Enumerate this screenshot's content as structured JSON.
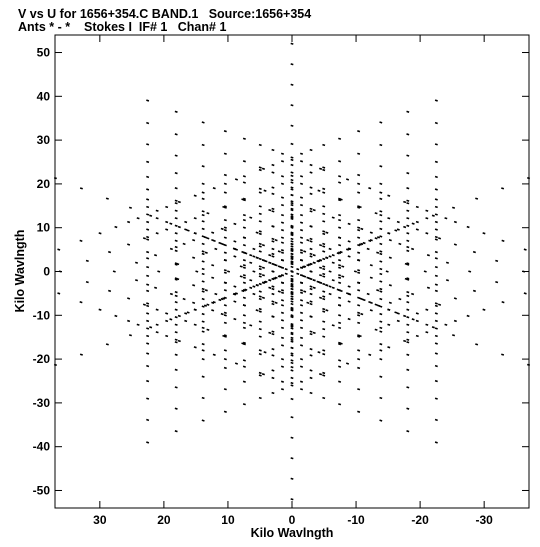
{
  "header": {
    "line1": "V vs U for 1656+354.C BAND.1   Source:1656+354",
    "line2": "Ants * - *    Stokes I  IF# 1   Chan# 1"
  },
  "chart_data": {
    "type": "scatter",
    "xlabel": "Kilo Wavlngth",
    "ylabel": "Kilo Wavlngth",
    "xlim": [
      37,
      -37
    ],
    "ylim": [
      -54,
      54
    ],
    "x_ticks": [
      30,
      20,
      10,
      0,
      -10,
      -20,
      -30
    ],
    "y_ticks": [
      50,
      40,
      30,
      20,
      10,
      0,
      -10,
      -20,
      -30,
      -40,
      -50
    ],
    "x_tick_labels": [
      "30",
      "20",
      "10",
      "0",
      "-10",
      "-20",
      "-30"
    ],
    "y_tick_labels": [
      "50",
      "40",
      "30",
      "20",
      "10",
      "0",
      "-10",
      "-20",
      "-30",
      "-40",
      "-50"
    ],
    "grid": false,
    "arm_angles_deg": [
      90,
      30,
      -30,
      -90,
      -150,
      150
    ],
    "arm_length": 52,
    "arm_sample_fractions": [
      0.02,
      0.04,
      0.06,
      0.09,
      0.12,
      0.16,
      0.2,
      0.25,
      0.3,
      0.36,
      0.42,
      0.49,
      0.56,
      0.64,
      0.73,
      0.82,
      0.91,
      1.0
    ]
  }
}
